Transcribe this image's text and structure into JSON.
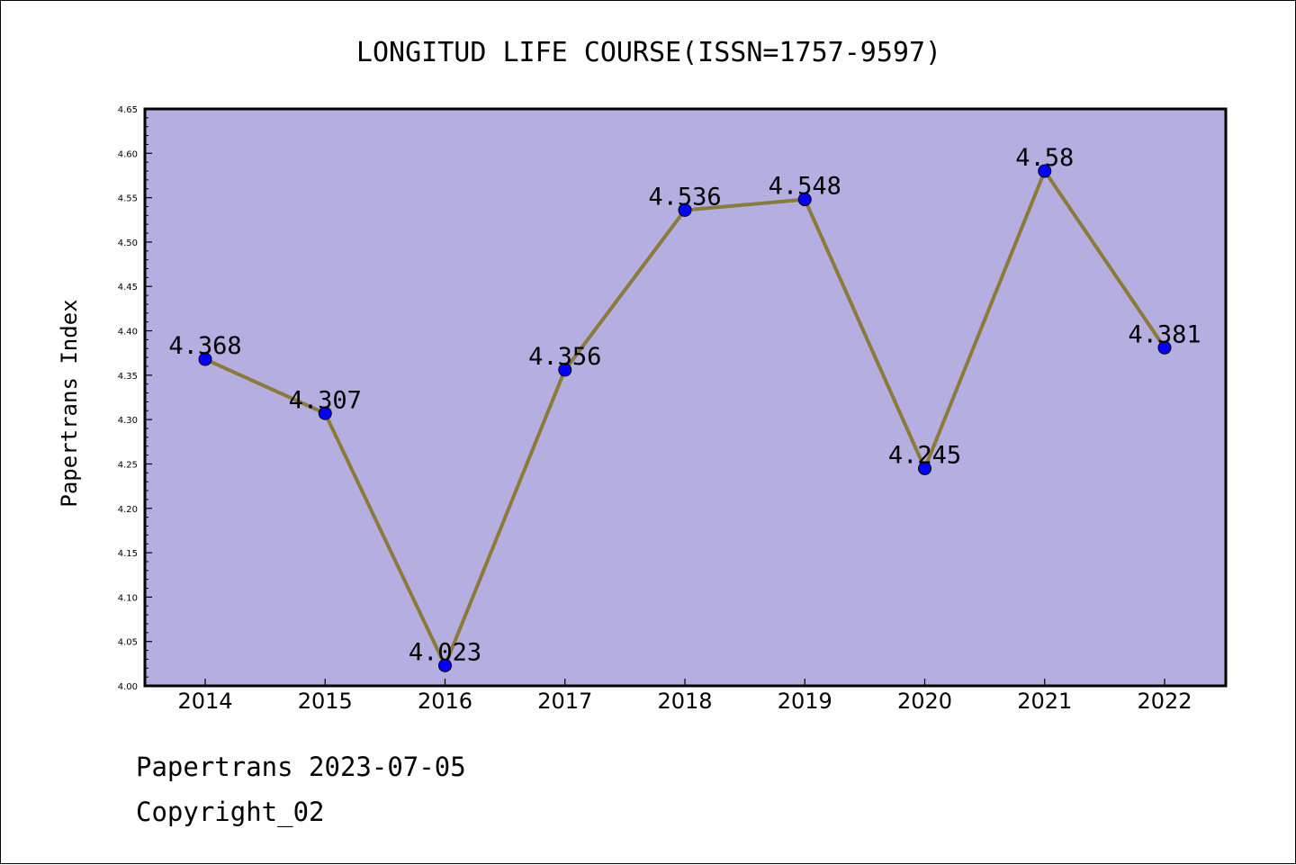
{
  "chart_data": {
    "type": "line",
    "title": "LONGITUD LIFE COURSE(ISSN=1757-9597)",
    "xlabel": "",
    "ylabel": "Papertrans Index",
    "categories": [
      "2014",
      "2015",
      "2016",
      "2017",
      "2018",
      "2019",
      "2020",
      "2021",
      "2022"
    ],
    "series": [
      {
        "values": [
          4.368,
          4.307,
          4.023,
          4.356,
          4.536,
          4.548,
          4.245,
          4.58,
          4.381
        ]
      }
    ],
    "data_labels": [
      "4.368",
      "4.307",
      "4.023",
      "4.356",
      "4.536",
      "4.548",
      "4.245",
      "4.58",
      "4.381"
    ],
    "ylim": [
      4.0,
      4.65
    ],
    "yticks": [
      "4.00",
      "4.05",
      "4.10",
      "4.15",
      "4.20",
      "4.25",
      "4.30",
      "4.35",
      "4.40",
      "4.45",
      "4.50",
      "4.55",
      "4.60",
      "4.65"
    ],
    "grid": false,
    "legend": "none",
    "colors": {
      "plot_background": "#b5aee1",
      "line": "#8b7a3a",
      "marker": "#0000ff"
    }
  },
  "footer": {
    "source": "Papertrans 2023-07-05",
    "copyright": "Copyright_02"
  }
}
